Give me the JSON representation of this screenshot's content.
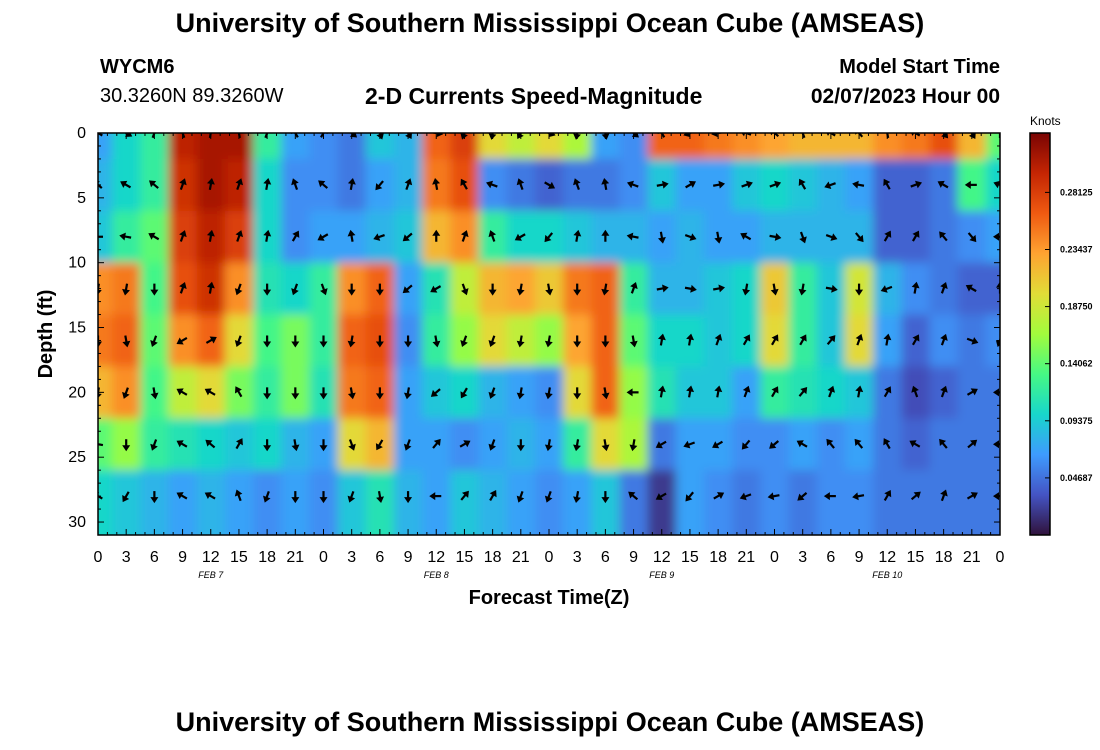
{
  "header": {
    "title": "University of Southern Mississippi Ocean Cube (AMSEAS)",
    "station_id": "WYCM6",
    "coordinates": "30.3260N  89.3260W",
    "subtitle": "2-D Currents Speed-Magnitude",
    "model_start_label": "Model Start Time",
    "model_start_value": "02/07/2023 Hour 00"
  },
  "footer": {
    "title": "University of Southern Mississippi Ocean Cube (AMSEAS)"
  },
  "chart_data": {
    "type": "heatmap",
    "title": "2-D Currents Speed-Magnitude",
    "xlabel": "Forecast Time(Z)",
    "ylabel": "Depth (ft)",
    "xlim": [
      0,
      96
    ],
    "ylim": [
      31,
      0
    ],
    "x_tick_labels": [
      "0",
      "3",
      "6",
      "9",
      "12",
      "15",
      "18",
      "21",
      "0",
      "3",
      "6",
      "9",
      "12",
      "15",
      "18",
      "21",
      "0",
      "3",
      "6",
      "9",
      "12",
      "15",
      "18",
      "21",
      "0",
      "3",
      "6",
      "9",
      "12",
      "15",
      "18",
      "21",
      "0"
    ],
    "y_ticks": [
      0,
      5,
      10,
      15,
      20,
      25,
      30
    ],
    "date_labels": [
      {
        "label": "FEB 7",
        "hour": 12
      },
      {
        "label": "FEB 8",
        "hour": 36
      },
      {
        "label": "FEB 9",
        "hour": 60
      },
      {
        "label": "FEB 10",
        "hour": 84
      }
    ],
    "colorbar": {
      "label": "Knots",
      "min": 0.0,
      "max": 0.33,
      "tick_labels": [
        "0.28125",
        "0.23437",
        "0.18750",
        "0.14062",
        "0.09375",
        "0.04687"
      ],
      "tick_values": [
        0.28125,
        0.234375,
        0.1875,
        0.140625,
        0.09375,
        0.046875
      ],
      "colors": [
        "#30123b",
        "#4454c4",
        "#3e9bfe",
        "#18d6cb",
        "#46f884",
        "#a2fc3c",
        "#e1dd37",
        "#fea331",
        "#ef5a11",
        "#c42503",
        "#7a0403"
      ]
    },
    "time_hours": [
      0,
      3,
      6,
      9,
      12,
      15,
      18,
      21,
      24,
      27,
      30,
      33,
      36,
      39,
      42,
      45,
      48,
      51,
      54,
      57,
      60,
      63,
      66,
      69,
      72,
      75,
      78,
      81,
      84,
      87,
      90,
      93,
      96
    ],
    "depths_ft": [
      0,
      4,
      8,
      12,
      16,
      20,
      24,
      28
    ],
    "speed_knots": [
      [
        0.07,
        0.1,
        0.12,
        0.3,
        0.31,
        0.31,
        0.12,
        0.07,
        0.06,
        0.05,
        0.09,
        0.08,
        0.26,
        0.28,
        0.2,
        0.18,
        0.2,
        0.17,
        0.07,
        0.06,
        0.26,
        0.26,
        0.25,
        0.24,
        0.23,
        0.22,
        0.22,
        0.22,
        0.24,
        0.25,
        0.27,
        0.22,
        0.14
      ],
      [
        0.08,
        0.1,
        0.12,
        0.29,
        0.31,
        0.3,
        0.1,
        0.06,
        0.06,
        0.05,
        0.07,
        0.08,
        0.25,
        0.27,
        0.06,
        0.05,
        0.04,
        0.05,
        0.05,
        0.06,
        0.09,
        0.07,
        0.07,
        0.09,
        0.1,
        0.09,
        0.08,
        0.07,
        0.04,
        0.04,
        0.05,
        0.13,
        0.1
      ],
      [
        0.09,
        0.12,
        0.14,
        0.28,
        0.3,
        0.28,
        0.1,
        0.06,
        0.07,
        0.07,
        0.08,
        0.09,
        0.22,
        0.24,
        0.12,
        0.1,
        0.1,
        0.09,
        0.08,
        0.08,
        0.07,
        0.08,
        0.07,
        0.07,
        0.08,
        0.08,
        0.08,
        0.08,
        0.04,
        0.04,
        0.05,
        0.06,
        0.07
      ],
      [
        0.24,
        0.25,
        0.13,
        0.27,
        0.29,
        0.24,
        0.11,
        0.1,
        0.12,
        0.24,
        0.26,
        0.07,
        0.11,
        0.18,
        0.22,
        0.23,
        0.21,
        0.25,
        0.26,
        0.12,
        0.08,
        0.08,
        0.09,
        0.1,
        0.21,
        0.12,
        0.09,
        0.19,
        0.08,
        0.06,
        0.05,
        0.04,
        0.04
      ],
      [
        0.25,
        0.26,
        0.14,
        0.24,
        0.26,
        0.2,
        0.13,
        0.15,
        0.12,
        0.26,
        0.27,
        0.06,
        0.12,
        0.16,
        0.2,
        0.18,
        0.16,
        0.23,
        0.26,
        0.14,
        0.1,
        0.1,
        0.09,
        0.1,
        0.2,
        0.12,
        0.09,
        0.2,
        0.07,
        0.04,
        0.06,
        0.05,
        0.06
      ],
      [
        0.22,
        0.24,
        0.13,
        0.18,
        0.2,
        0.15,
        0.12,
        0.15,
        0.11,
        0.25,
        0.26,
        0.07,
        0.09,
        0.1,
        0.08,
        0.07,
        0.06,
        0.2,
        0.26,
        0.16,
        0.11,
        0.09,
        0.09,
        0.07,
        0.12,
        0.11,
        0.1,
        0.09,
        0.05,
        0.03,
        0.04,
        0.05,
        0.05
      ],
      [
        0.14,
        0.16,
        0.12,
        0.11,
        0.1,
        0.09,
        0.1,
        0.08,
        0.07,
        0.2,
        0.22,
        0.07,
        0.07,
        0.06,
        0.07,
        0.08,
        0.07,
        0.12,
        0.2,
        0.17,
        0.05,
        0.07,
        0.07,
        0.06,
        0.06,
        0.07,
        0.06,
        0.07,
        0.05,
        0.04,
        0.05,
        0.05,
        0.05
      ],
      [
        0.1,
        0.09,
        0.08,
        0.07,
        0.08,
        0.07,
        0.06,
        0.07,
        0.06,
        0.09,
        0.11,
        0.08,
        0.07,
        0.09,
        0.08,
        0.07,
        0.06,
        0.07,
        0.09,
        0.05,
        0.02,
        0.07,
        0.06,
        0.05,
        0.06,
        0.05,
        0.06,
        0.06,
        0.05,
        0.05,
        0.05,
        0.05,
        0.05
      ]
    ],
    "vector_times_hours": [
      0,
      3,
      6,
      9,
      12,
      15,
      18,
      21,
      24,
      27,
      30,
      33,
      36,
      39,
      42,
      45,
      48,
      51,
      54,
      57,
      60,
      63,
      66,
      69,
      72,
      75,
      78,
      81,
      84,
      87,
      90,
      93,
      96
    ],
    "vector_depths_ft": [
      0,
      4,
      8,
      12,
      16,
      20,
      24,
      28
    ],
    "vector_directions_deg": [
      [
        300,
        120,
        20,
        340,
        10,
        350,
        20,
        330,
        30,
        130,
        160,
        150,
        100,
        200,
        190,
        210,
        110,
        190,
        170,
        130,
        330,
        250,
        260,
        290,
        310,
        340,
        300,
        320,
        350,
        300,
        140,
        150,
        0
      ],
      [
        310,
        300,
        310,
        20,
        10,
        20,
        10,
        340,
        310,
        10,
        220,
        20,
        350,
        330,
        290,
        340,
        120,
        340,
        350,
        290,
        80,
        60,
        80,
        70,
        70,
        330,
        250,
        280,
        330,
        70,
        300,
        270,
        290
      ],
      [
        270,
        280,
        300,
        20,
        10,
        20,
        10,
        30,
        240,
        350,
        250,
        230,
        360,
        20,
        340,
        240,
        220,
        10,
        360,
        280,
        170,
        110,
        170,
        300,
        100,
        160,
        110,
        140,
        30,
        30,
        320,
        140,
        270
      ],
      [
        190,
        190,
        180,
        20,
        10,
        200,
        180,
        200,
        160,
        180,
        180,
        230,
        240,
        160,
        180,
        190,
        170,
        180,
        190,
        20,
        80,
        100,
        80,
        190,
        170,
        190,
        100,
        180,
        250,
        10,
        20,
        300,
        0
      ],
      [
        180,
        170,
        200,
        240,
        60,
        200,
        180,
        180,
        180,
        190,
        180,
        180,
        170,
        200,
        200,
        190,
        190,
        180,
        180,
        170,
        10,
        10,
        20,
        30,
        30,
        30,
        40,
        20,
        10,
        30,
        20,
        110,
        200
      ],
      [
        190,
        200,
        170,
        300,
        300,
        330,
        180,
        180,
        180,
        170,
        180,
        190,
        230,
        210,
        200,
        190,
        190,
        180,
        170,
        270,
        10,
        10,
        10,
        20,
        30,
        40,
        20,
        10,
        30,
        340,
        20,
        60,
        270
      ],
      [
        280,
        180,
        200,
        300,
        310,
        30,
        180,
        170,
        180,
        160,
        210,
        200,
        40,
        60,
        200,
        180,
        190,
        190,
        170,
        190,
        240,
        250,
        240,
        220,
        230,
        300,
        320,
        320,
        330,
        300,
        320,
        50,
        270
      ],
      [
        300,
        210,
        180,
        300,
        300,
        340,
        200,
        180,
        180,
        200,
        170,
        180,
        270,
        40,
        30,
        200,
        200,
        190,
        180,
        310,
        240,
        220,
        60,
        250,
        260,
        230,
        270,
        260,
        30,
        50,
        20,
        60,
        270
      ]
    ]
  }
}
